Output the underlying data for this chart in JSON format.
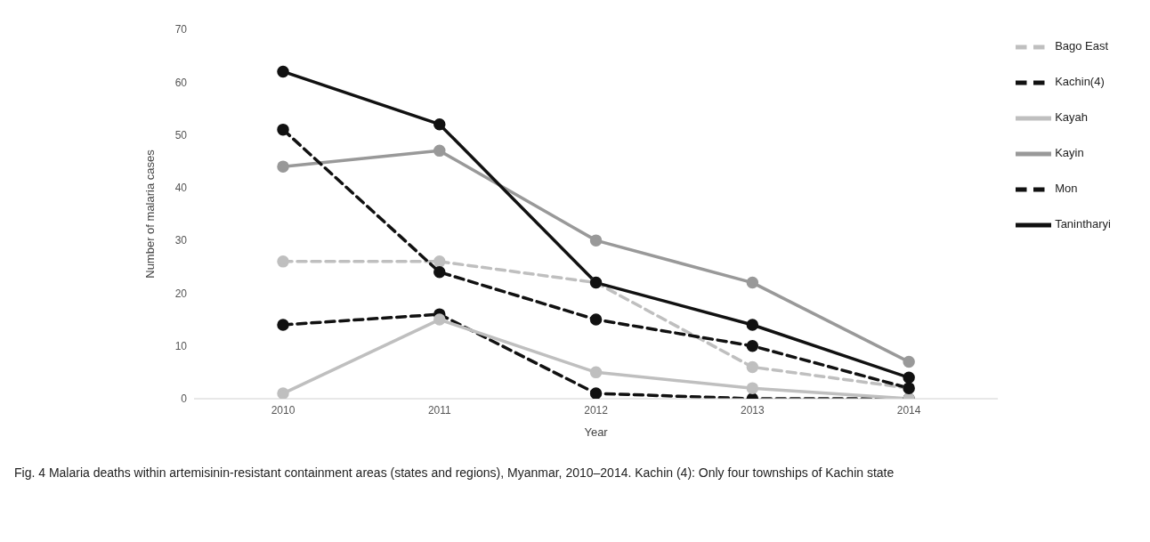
{
  "chart_data": {
    "type": "line",
    "xlabel": "Year",
    "ylabel": "Number of malaria cases",
    "categories": [
      "2010",
      "2011",
      "2012",
      "2013",
      "2014"
    ],
    "ylim": [
      0,
      70
    ],
    "yticks": [
      0,
      10,
      20,
      30,
      40,
      50,
      60,
      70
    ],
    "grid": false,
    "legend": "right",
    "marker": "circle",
    "series": [
      {
        "name": "Bago East",
        "color": "#bfbfbf",
        "line_style": "dashed",
        "values": [
          26,
          26,
          22,
          6,
          2
        ]
      },
      {
        "name": "Kachin(4)",
        "color": "#111111",
        "line_style": "dashed",
        "values": [
          14,
          16,
          1,
          0,
          0
        ]
      },
      {
        "name": "Kayah",
        "color": "#bfbfbf",
        "line_style": "solid",
        "values": [
          1,
          15,
          5,
          2,
          0
        ]
      },
      {
        "name": "Kayin",
        "color": "#999999",
        "line_style": "solid",
        "values": [
          44,
          47,
          30,
          22,
          7
        ]
      },
      {
        "name": "Mon",
        "color": "#111111",
        "line_style": "dashed",
        "values": [
          51,
          24,
          15,
          10,
          2
        ]
      },
      {
        "name": "Tanintharyi",
        "color": "#111111",
        "line_style": "solid",
        "values": [
          62,
          52,
          22,
          14,
          4
        ]
      }
    ],
    "annotations": [
      "Fig. 4 Malaria deaths within artemisinin-resistant containment areas (states and regions), Myanmar, 2010–2014. Kachin (4): Only four townships of Kachin state"
    ]
  }
}
